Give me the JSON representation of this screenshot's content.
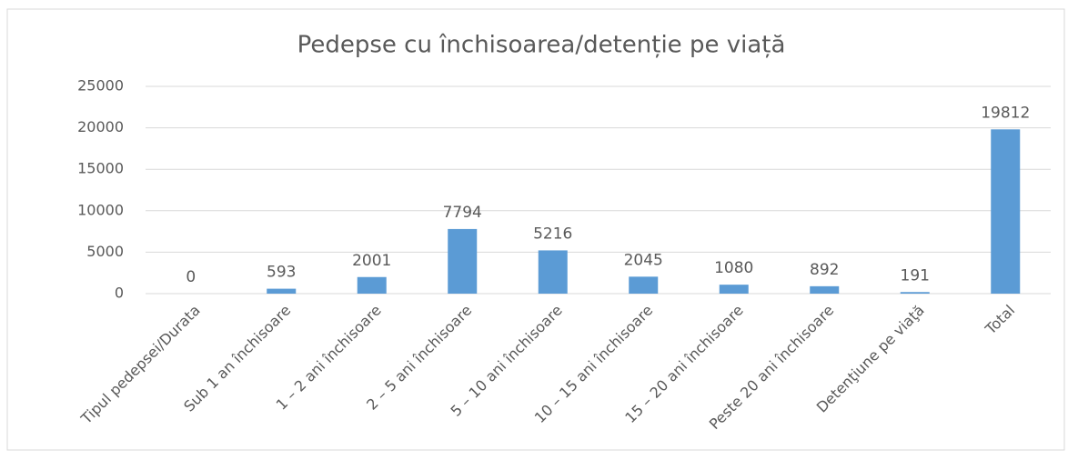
{
  "chart_data": {
    "type": "bar",
    "title": "Pedepse cu închisoarea/detenție pe viață",
    "categories": [
      "Tipul pedepsei/Durata",
      "Sub 1 an închisoare",
      "1 – 2 ani închisoare",
      "2 – 5 ani închisoare",
      "5 – 10 ani închisoare",
      "10 – 15 ani închisoare",
      "15 – 20 ani închisoare",
      "Peste 20 ani închisoare",
      "Detenţiune pe viaţă",
      "Total"
    ],
    "values": [
      0,
      593,
      2001,
      7794,
      5216,
      2045,
      1080,
      892,
      191,
      19812
    ],
    "color": "#5b9bd5",
    "ylim": [
      0,
      25000
    ],
    "yticks": [
      0,
      5000,
      10000,
      15000,
      20000,
      25000
    ],
    "grid": true
  }
}
